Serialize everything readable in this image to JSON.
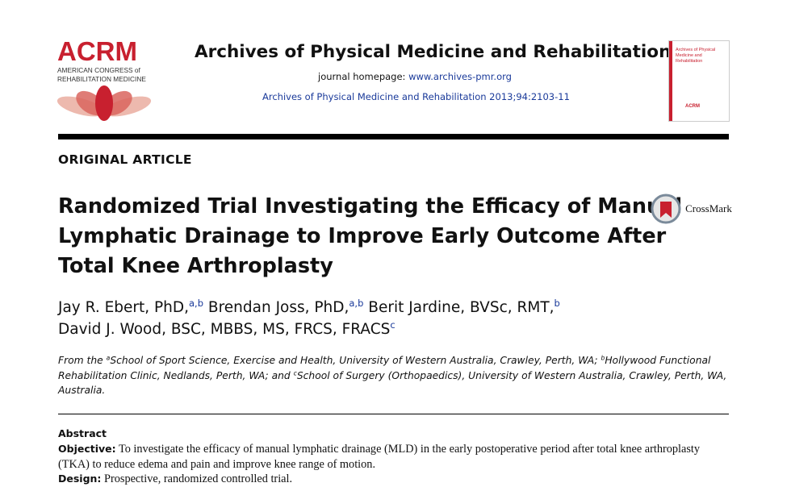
{
  "header": {
    "logo": {
      "name": "ACRM",
      "line1": "AMERICAN CONGRESS of",
      "line2": "REHABILITATION MEDICINE"
    },
    "journal_title": "Archives of Physical Medicine and Rehabilitation",
    "homepage_label": "journal homepage:",
    "homepage_url": "www.archives-pmr.org",
    "citation": "Archives of Physical Medicine and Rehabilitation 2013;94:2103-11",
    "cover": {
      "title": "Archives of Physical Medicine and Rehabilitation",
      "logo": "ACRM"
    }
  },
  "article_type": "ORIGINAL ARTICLE",
  "title_lines": [
    "Randomized Trial Investigating the Efficacy of Manual",
    "Lymphatic Drainage to Improve Early Outcome After",
    "Total Knee Arthroplasty"
  ],
  "crossmark": "CrossMark",
  "authors": [
    {
      "name": "Jay R. Ebert, PhD,",
      "sup": "a,b"
    },
    {
      "name": "Brendan Joss, PhD,",
      "sup": "a,b"
    },
    {
      "name": "Berit Jardine, BVSc, RMT,",
      "sup": "b"
    },
    {
      "name": "David J. Wood, BSC, MBBS, MS, FRCS, FRACS",
      "sup": "c"
    }
  ],
  "affiliations": {
    "prefix": "From the",
    "items": [
      {
        "sup": "a",
        "text": "School of Sport Science, Exercise and Health, University of Western Australia, Crawley, Perth, WA;"
      },
      {
        "sup": "b",
        "text": "Hollywood Functional Rehabilitation Clinic, Nedlands, Perth, WA; and"
      },
      {
        "sup": "c",
        "text": "School of Surgery (Orthopaedics), University of Western Australia, Crawley, Perth, WA, Australia."
      }
    ]
  },
  "abstract": {
    "heading": "Abstract",
    "sections": [
      {
        "label": "Objective:",
        "text": "To investigate the efficacy of manual lymphatic drainage (MLD) in the early postoperative period after total knee arthroplasty (TKA) to reduce edema and pain and improve knee range of motion."
      },
      {
        "label": "Design:",
        "text": "Prospective, randomized controlled trial."
      }
    ]
  }
}
